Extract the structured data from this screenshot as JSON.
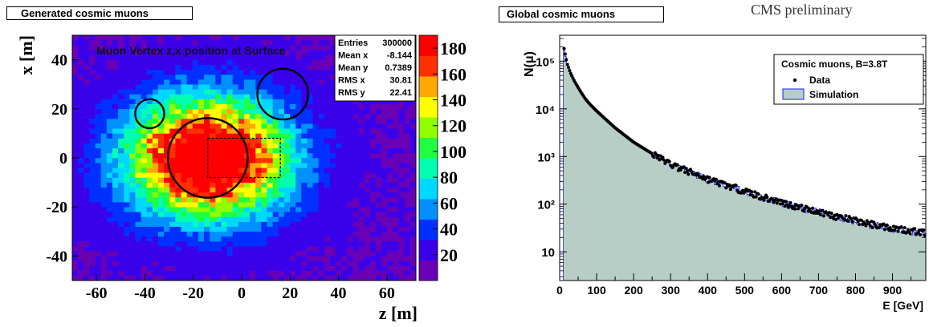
{
  "header": {
    "left_title": "Generated cosmic muons",
    "right_title": "Global cosmic muons",
    "preliminary": "CMS preliminary"
  },
  "colors": {
    "palette": [
      "#6a00b5",
      "#3a00ea",
      "#0030ff",
      "#0090ff",
      "#00d8ff",
      "#00ffb0",
      "#20ff40",
      "#90ff00",
      "#ffff00",
      "#ffa800",
      "#ff3000",
      "#ff0000"
    ],
    "sim_fill": "#b7cec6",
    "sim_line": "#1c1cff",
    "data_marker": "#000000"
  },
  "chart_data": [
    {
      "type": "heatmap",
      "title": "Muon Vertex z,x position at Surface",
      "xlabel": "z [m]",
      "ylabel": "x [m]",
      "xlim": [
        -70,
        72
      ],
      "ylim": [
        -50,
        50
      ],
      "xticks": [
        "-60",
        "-40",
        "-20",
        "0",
        "20",
        "40",
        "60"
      ],
      "yticks": [
        "-40",
        "-20",
        "0",
        "20",
        "40"
      ],
      "zlim": [
        0,
        190
      ],
      "zticks": [
        "20",
        "40",
        "60",
        "80",
        "100",
        "120",
        "140",
        "160",
        "180"
      ],
      "stats": {
        "rows": [
          {
            "label": "Entries",
            "value": "300000"
          },
          {
            "label": "Mean x",
            "value": "-8.144"
          },
          {
            "label": "Mean y",
            "value": "0.7389"
          },
          {
            "label": "RMS x",
            "value": "30.81"
          },
          {
            "label": "RMS y",
            "value": "22.41"
          }
        ]
      },
      "circles": [
        {
          "z": -14,
          "x": 0,
          "r": 11
        },
        {
          "z": 17,
          "x": 26,
          "r": 7
        },
        {
          "z": -38,
          "x": 18,
          "r": 4
        }
      ],
      "dashed_rect": {
        "z0": -14,
        "z1": 16,
        "x0": -8,
        "x1": 8
      }
    },
    {
      "type": "area",
      "title": "",
      "xlabel": "E [GeV]",
      "ylabel": "N(μ)",
      "log_y": true,
      "xlim": [
        0,
        990
      ],
      "ylim": [
        2.5,
        350000
      ],
      "xticks": [
        "0",
        "100",
        "200",
        "300",
        "400",
        "500",
        "600",
        "700",
        "800",
        "900"
      ],
      "yticks": [
        {
          "value": 10,
          "label": "10"
        },
        {
          "value": 100,
          "label": "10²"
        },
        {
          "value": 1000,
          "label": "10³"
        },
        {
          "value": 10000,
          "label": "10⁴"
        },
        {
          "value": 100000,
          "label": "10⁵"
        }
      ],
      "legend": {
        "title": "Cosmic muons, B=3.8T",
        "entries": [
          {
            "name": "Data",
            "style": "marker"
          },
          {
            "name": "Simulation",
            "style": "fill"
          }
        ],
        "placement": "top-right"
      },
      "series": [
        {
          "name": "Data",
          "x": [
            10,
            20,
            30,
            40,
            50,
            60,
            70,
            80,
            100,
            120,
            150,
            200,
            250,
            300,
            350,
            400,
            450,
            500,
            550,
            600,
            650,
            700,
            750,
            800,
            850,
            900,
            950,
            990
          ],
          "values": [
            220000,
            90000,
            55000,
            38000,
            28000,
            21000,
            16000,
            13000,
            9000,
            6500,
            4000,
            2000,
            1150,
            700,
            480,
            340,
            250,
            190,
            140,
            110,
            85,
            70,
            55,
            45,
            37,
            32,
            28,
            25
          ]
        },
        {
          "name": "Simulation",
          "x": [
            10,
            20,
            30,
            40,
            50,
            60,
            70,
            80,
            100,
            120,
            150,
            200,
            250,
            300,
            350,
            400,
            450,
            500,
            550,
            600,
            650,
            700,
            750,
            800,
            850,
            900,
            950,
            990
          ],
          "values": [
            210000,
            88000,
            54000,
            37000,
            27500,
            20500,
            15800,
            12800,
            8800,
            6400,
            3950,
            1980,
            1140,
            690,
            475,
            335,
            245,
            188,
            138,
            108,
            84,
            69,
            54,
            44,
            36,
            31,
            27,
            24
          ]
        }
      ]
    }
  ]
}
